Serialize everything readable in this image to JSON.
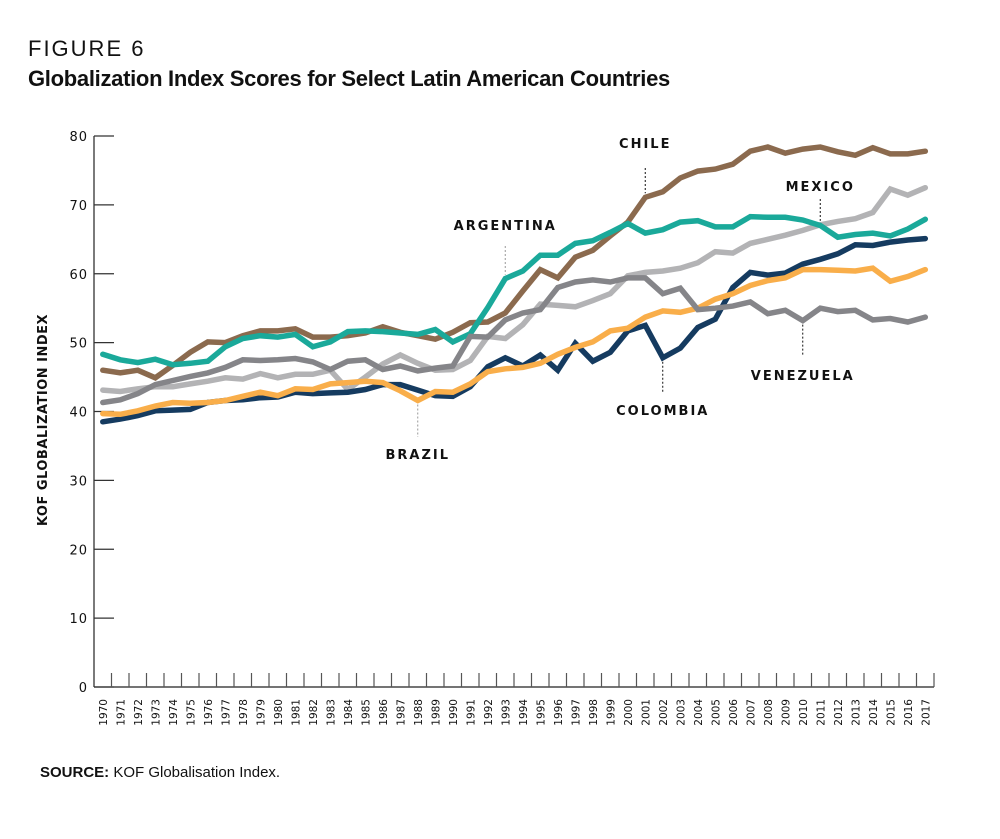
{
  "figure": {
    "label": "FIGURE 6",
    "title": "Globalization Index Scores for Select Latin American Countries",
    "source_prefix": "SOURCE:",
    "source_text": " KOF Globalisation Index."
  },
  "chart_data": {
    "type": "line",
    "title": "Globalization Index Scores for Select Latin American Countries",
    "xlabel": "",
    "ylabel": "KOF GLOBALIZATION INDEX",
    "ylim": [
      0,
      80
    ],
    "yticks": [
      0,
      10,
      20,
      30,
      40,
      50,
      60,
      70,
      80
    ],
    "grid": false,
    "legend": "direct-labels",
    "x": [
      1970,
      1971,
      1972,
      1973,
      1974,
      1975,
      1976,
      1977,
      1978,
      1979,
      1980,
      1981,
      1982,
      1983,
      1984,
      1985,
      1986,
      1987,
      1988,
      1989,
      1990,
      1991,
      1992,
      1993,
      1994,
      1995,
      1996,
      1997,
      1998,
      1999,
      2000,
      2001,
      2002,
      2003,
      2004,
      2005,
      2006,
      2007,
      2008,
      2009,
      2010,
      2011,
      2012,
      2013,
      2014,
      2015,
      2016,
      2017
    ],
    "series": [
      {
        "name": "CHILE",
        "color": "#8B6A4E",
        "values": [
          46.0,
          45.6,
          46.0,
          44.9,
          46.7,
          48.6,
          50.1,
          50.0,
          51.0,
          51.7,
          51.7,
          52.0,
          50.8,
          50.8,
          51.0,
          51.4,
          52.3,
          51.5,
          51.0,
          50.5,
          51.5,
          52.9,
          53.0,
          54.3,
          57.5,
          60.6,
          59.4,
          62.4,
          63.4,
          65.5,
          67.5,
          71.1,
          71.9,
          73.9,
          74.9,
          75.2,
          75.9,
          77.8,
          78.4,
          77.5,
          78.1,
          78.4,
          77.7,
          77.2,
          78.3,
          77.4,
          77.4,
          77.8
        ]
      },
      {
        "name": "MEXICO",
        "color": "#B3B3B5",
        "values": [
          43.1,
          42.9,
          43.3,
          43.6,
          43.6,
          44.0,
          44.4,
          44.9,
          44.7,
          45.5,
          44.9,
          45.4,
          45.4,
          46.0,
          43.2,
          45.0,
          46.9,
          48.2,
          47.0,
          46.0,
          46.1,
          47.4,
          50.9,
          50.6,
          52.6,
          55.6,
          55.4,
          55.2,
          56.1,
          57.1,
          59.7,
          60.2,
          60.4,
          60.8,
          61.6,
          63.2,
          63.0,
          64.4,
          65.0,
          65.6,
          66.3,
          67.1,
          67.6,
          68.0,
          68.9,
          72.3,
          71.4,
          72.5
        ]
      },
      {
        "name": "ARGENTINA",
        "color": "#1AA99A",
        "values": [
          48.3,
          47.5,
          47.1,
          47.6,
          46.8,
          47.0,
          47.3,
          49.4,
          50.6,
          51.0,
          50.8,
          51.2,
          49.4,
          50.1,
          51.6,
          51.7,
          51.6,
          51.4,
          51.2,
          51.9,
          50.1,
          51.3,
          55.1,
          59.3,
          60.4,
          62.7,
          62.7,
          64.4,
          64.8,
          66.0,
          67.3,
          65.9,
          66.4,
          67.5,
          67.7,
          66.8,
          66.8,
          68.3,
          68.2,
          68.2,
          67.8,
          67.0,
          65.3,
          65.7,
          65.9,
          65.5,
          66.5,
          67.9
        ]
      },
      {
        "name": "COLOMBIA",
        "color": "#153B60",
        "values": [
          38.5,
          38.9,
          39.4,
          40.1,
          40.2,
          40.3,
          41.3,
          41.6,
          41.7,
          42.0,
          42.1,
          42.8,
          42.6,
          42.7,
          42.8,
          43.2,
          43.9,
          43.9,
          43.1,
          42.3,
          42.2,
          43.6,
          46.5,
          47.8,
          46.6,
          48.2,
          46.0,
          49.9,
          47.3,
          48.6,
          51.7,
          52.5,
          47.8,
          49.2,
          52.2,
          53.4,
          58.0,
          60.2,
          59.8,
          60.1,
          61.4,
          62.1,
          62.9,
          64.2,
          64.1,
          64.6,
          64.9,
          65.1
        ]
      },
      {
        "name": "BRAZIL",
        "color": "#F9AE4A",
        "values": [
          39.7,
          39.6,
          40.1,
          40.8,
          41.3,
          41.2,
          41.3,
          41.6,
          42.2,
          42.8,
          42.3,
          43.3,
          43.2,
          44.0,
          44.2,
          44.4,
          44.2,
          43.0,
          41.6,
          42.9,
          42.8,
          44.0,
          45.8,
          46.2,
          46.4,
          47.0,
          48.3,
          49.3,
          50.1,
          51.7,
          52.1,
          53.7,
          54.6,
          54.4,
          55.0,
          56.3,
          57.1,
          58.3,
          59.0,
          59.4,
          60.6,
          60.6,
          60.5,
          60.4,
          60.8,
          58.9,
          59.6,
          60.6
        ]
      },
      {
        "name": "VENEZUELA",
        "color": "#858589",
        "values": [
          41.3,
          41.7,
          42.6,
          43.9,
          44.5,
          45.1,
          45.6,
          46.4,
          47.5,
          47.4,
          47.5,
          47.7,
          47.2,
          46.1,
          47.3,
          47.5,
          46.1,
          46.6,
          45.9,
          46.3,
          46.6,
          50.9,
          50.8,
          53.3,
          54.3,
          54.8,
          58.0,
          58.8,
          59.1,
          58.8,
          59.4,
          59.4,
          57.1,
          57.9,
          54.8,
          55.0,
          55.3,
          55.9,
          54.2,
          54.7,
          53.2,
          55.0,
          54.5,
          54.7,
          53.3,
          53.5,
          53.0,
          53.7
        ]
      }
    ],
    "annotations": [
      {
        "series": "CHILE",
        "text": "CHILE",
        "year": 2001,
        "position": "above"
      },
      {
        "series": "MEXICO",
        "text": "MEXICO",
        "year": 2011,
        "position": "above"
      },
      {
        "series": "ARGENTINA",
        "text": "ARGENTINA",
        "year": 1993,
        "position": "above"
      },
      {
        "series": "COLOMBIA",
        "text": "COLOMBIA",
        "year": 2002,
        "position": "below"
      },
      {
        "series": "BRAZIL",
        "text": "BRAZIL",
        "year": 1988,
        "position": "below"
      },
      {
        "series": "VENEZUELA",
        "text": "VENEZUELA",
        "year": 2010,
        "position": "below"
      }
    ]
  }
}
